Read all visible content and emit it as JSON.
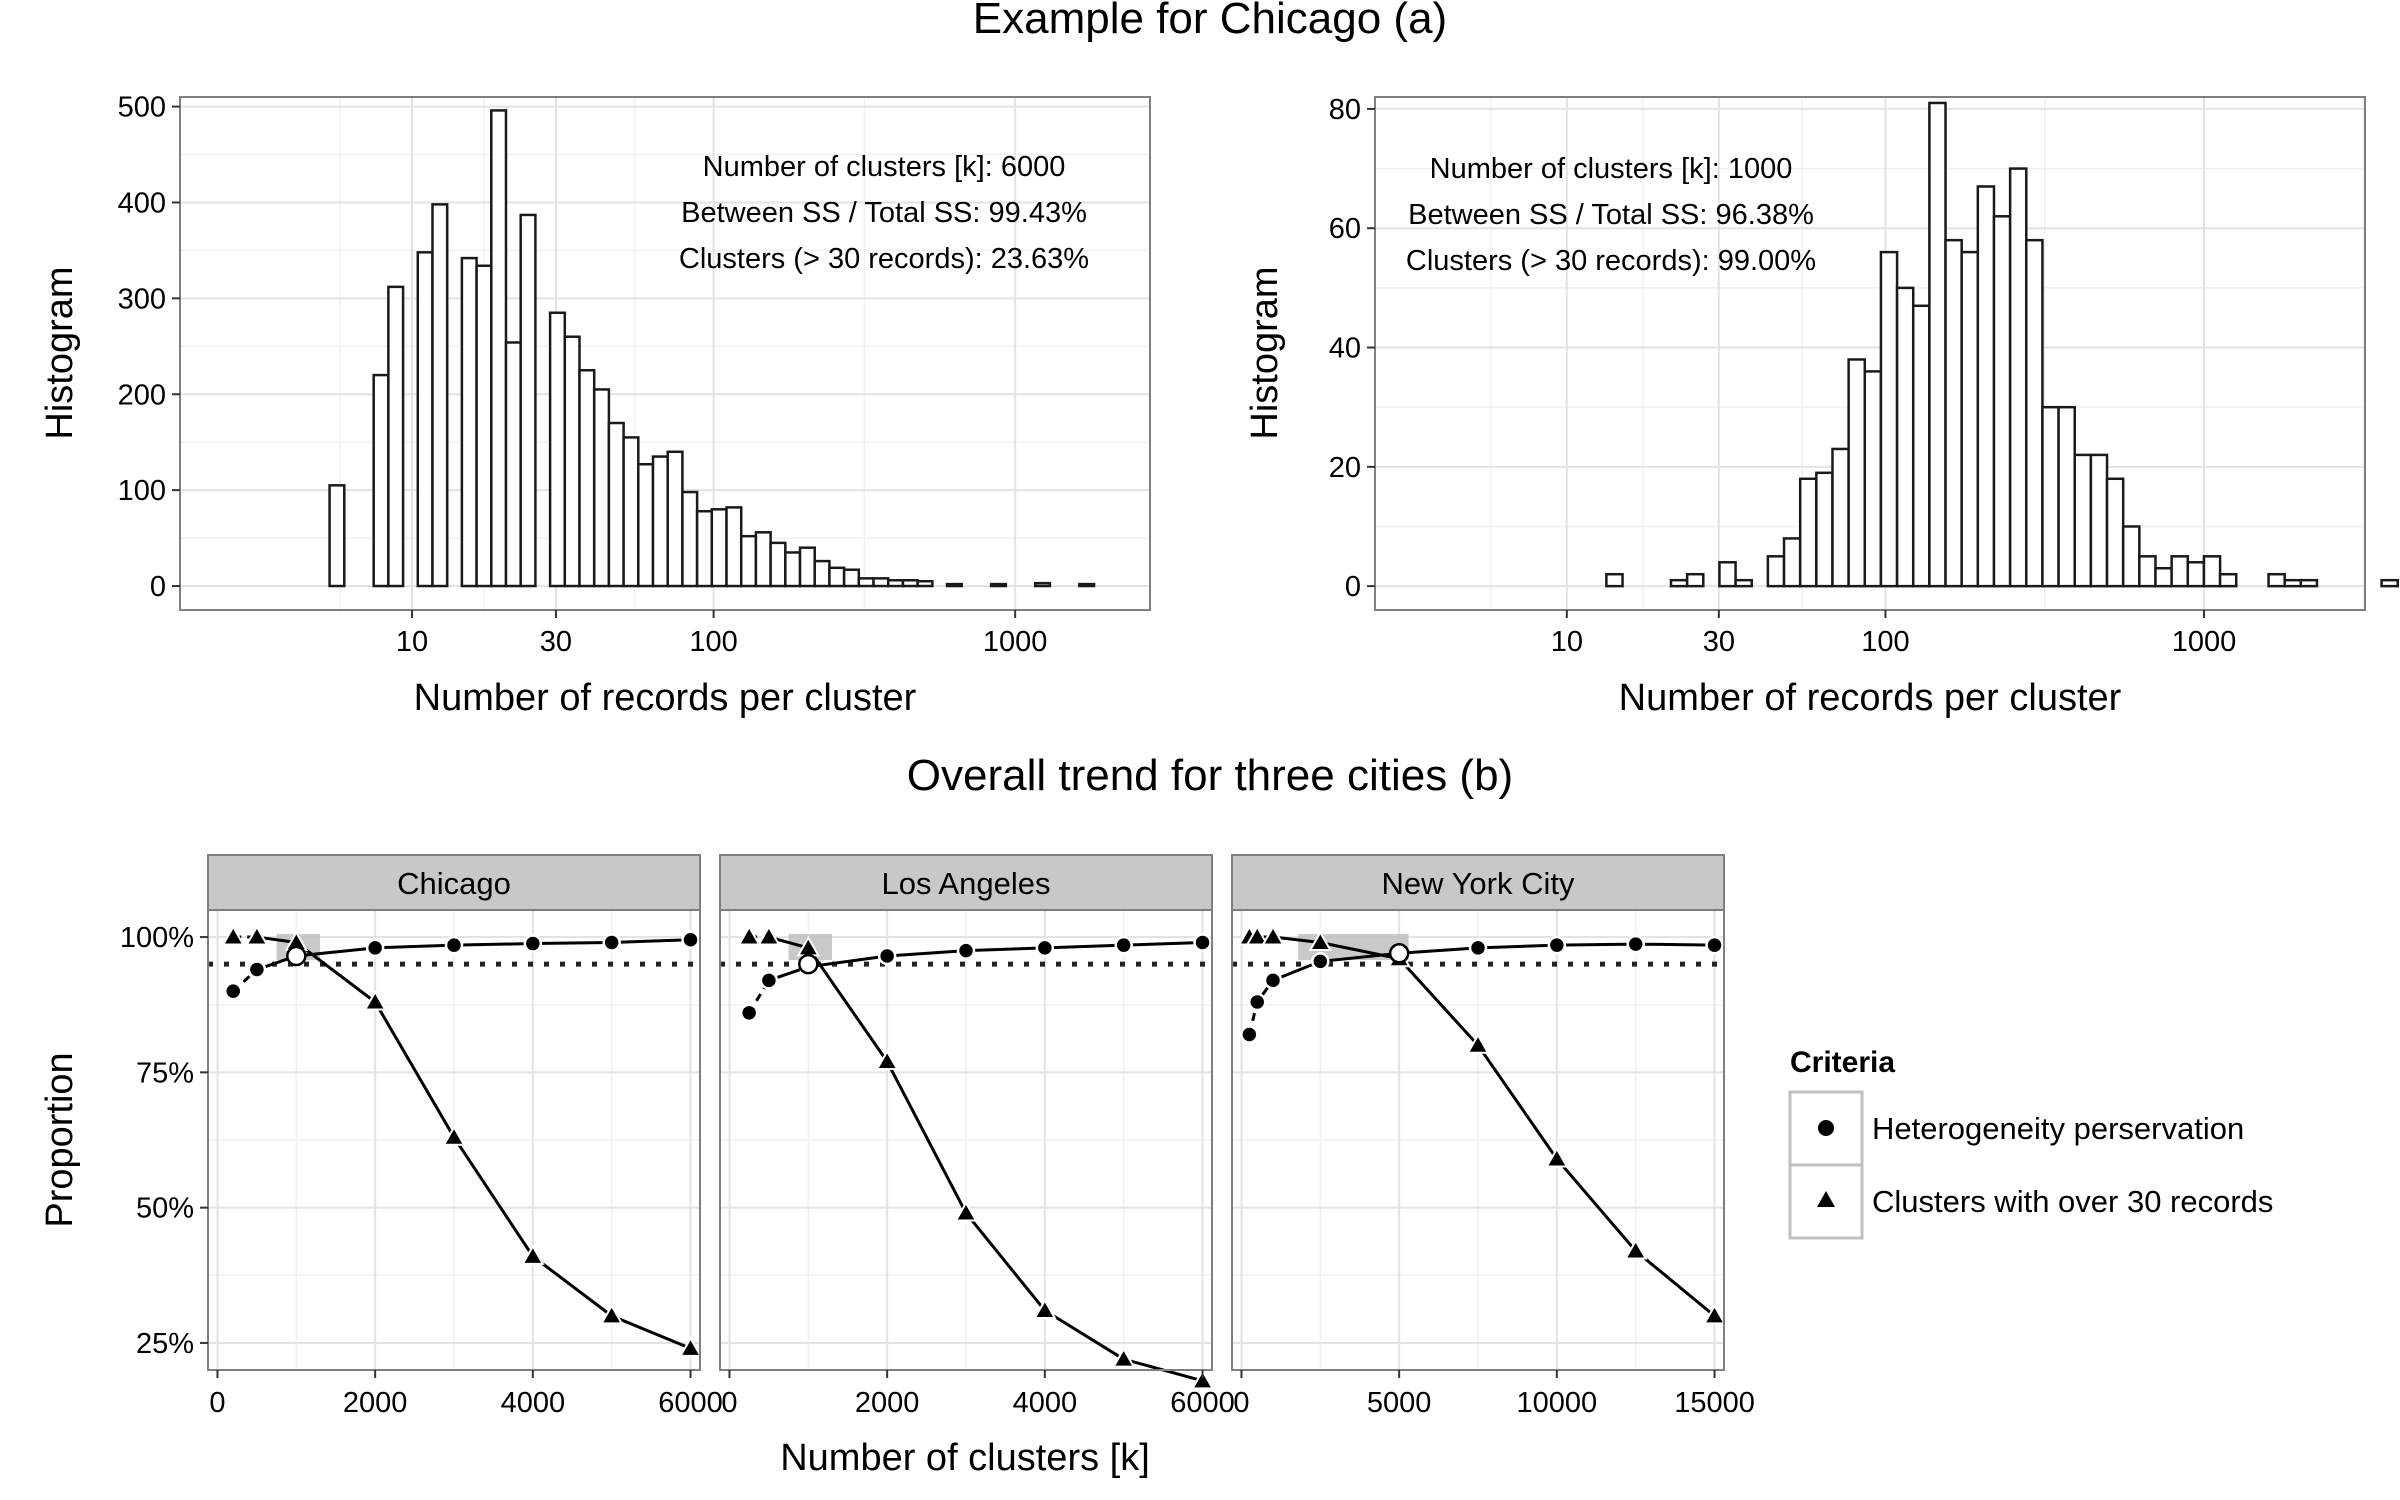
{
  "figure": {
    "title_a": "Example for Chicago (a)",
    "title_b": "Overall trend for three cities (b)"
  },
  "chart_data": [
    {
      "type": "bar",
      "id": "hist-chicago",
      "x_scale": "log",
      "xlabel": "Number of records per cluster",
      "ylabel": "Histogram",
      "xticks": [
        10,
        30,
        100,
        1000
      ],
      "xlim": [
        1.7,
        2800
      ],
      "ylim": [
        -25,
        510
      ],
      "yticks": [
        0,
        100,
        200,
        300,
        400,
        500
      ],
      "annotations": [
        "Number of clusters [k]: 6000",
        "Between SS / Total SS: 99.43%",
        "Clusters (> 30 records): 23.63%"
      ],
      "bin_start": 2.17,
      "bin_ratio": 1.1188,
      "values": [
        0,
        0,
        0,
        0,
        0,
        0,
        0,
        0,
        105,
        0,
        0,
        220,
        312,
        0,
        348,
        398,
        0,
        342,
        334,
        496,
        254,
        387,
        0,
        285,
        260,
        225,
        205,
        170,
        155,
        127,
        135,
        140,
        98,
        78,
        80,
        82,
        52,
        56,
        45,
        35,
        40,
        26,
        19,
        17,
        8,
        8,
        6,
        6,
        5,
        0,
        2,
        0,
        0,
        2,
        0,
        0,
        3,
        0,
        0,
        2,
        0,
        0,
        0,
        0
      ]
    },
    {
      "type": "bar",
      "id": "hist-chicago-1000",
      "x_scale": "log",
      "xlabel": "Number of records per cluster",
      "ylabel": "Histogram",
      "xticks": [
        10,
        30,
        100,
        1000
      ],
      "xlim": [
        2.5,
        3200
      ],
      "ylim": [
        -4,
        82
      ],
      "yticks": [
        0,
        20,
        40,
        60,
        80
      ],
      "annotations": [
        "Number of clusters [k]: 1000",
        "Between SS / Total SS: 96.38%",
        "Clusters (> 30 records): 99.00%"
      ],
      "bin_start": 3.28,
      "bin_ratio": 1.1238,
      "values": [
        0,
        0,
        0,
        0,
        0,
        0,
        0,
        0,
        0,
        0,
        0,
        0,
        2,
        0,
        0,
        0,
        1,
        2,
        0,
        4,
        1,
        0,
        5,
        8,
        18,
        19,
        23,
        38,
        36,
        56,
        50,
        47,
        81,
        58,
        56,
        67,
        62,
        70,
        58,
        30,
        30,
        22,
        22,
        18,
        10,
        5,
        3,
        5,
        4,
        5,
        2,
        0,
        0,
        2,
        1,
        1,
        0,
        0,
        0,
        0,
        1,
        0,
        0
      ]
    },
    {
      "type": "line",
      "id": "trend-chicago",
      "facet": "Chicago",
      "xlim": [
        0,
        6000
      ],
      "xticks": [
        0,
        2000,
        4000,
        6000
      ],
      "ylim": [
        0.2,
        1.05
      ],
      "series": [
        {
          "name": "Heterogeneity perservation",
          "marker": "circle",
          "x": [
            200,
            500,
            1000,
            2000,
            3000,
            4000,
            5000,
            6000
          ],
          "y": [
            0.9,
            0.94,
            0.965,
            0.98,
            0.985,
            0.988,
            0.99,
            0.995
          ]
        },
        {
          "name": "Clusters with over 30 records",
          "marker": "triangle",
          "x": [
            200,
            500,
            1000,
            2000,
            3000,
            4000,
            5000,
            6000
          ],
          "y": [
            1.0,
            1.0,
            0.99,
            0.88,
            0.63,
            0.41,
            0.3,
            0.24
          ]
        }
      ],
      "hline": 0.95,
      "highlight_range": [
        750,
        1300
      ],
      "open_marker": [
        1000,
        0.965
      ]
    },
    {
      "type": "line",
      "id": "trend-los-angeles",
      "facet": "Los Angeles",
      "xlim": [
        0,
        6000
      ],
      "xticks": [
        0,
        2000,
        4000,
        6000
      ],
      "ylim": [
        0.2,
        1.05
      ],
      "series": [
        {
          "name": "Heterogeneity perservation",
          "marker": "circle",
          "x": [
            250,
            500,
            1000,
            2000,
            3000,
            4000,
            5000,
            6000
          ],
          "y": [
            0.86,
            0.92,
            0.945,
            0.965,
            0.975,
            0.98,
            0.985,
            0.99
          ]
        },
        {
          "name": "Clusters with over 30 records",
          "marker": "triangle",
          "x": [
            250,
            500,
            1000,
            2000,
            3000,
            4000,
            5000,
            6000
          ],
          "y": [
            1.0,
            1.0,
            0.98,
            0.77,
            0.49,
            0.31,
            0.22,
            0.18
          ]
        }
      ],
      "hline": 0.95,
      "highlight_range": [
        750,
        1300
      ],
      "open_marker": [
        1000,
        0.95
      ]
    },
    {
      "type": "line",
      "id": "trend-new-york-city",
      "facet": "New York City",
      "xlim": [
        0,
        15000
      ],
      "xticks": [
        0,
        5000,
        10000,
        15000
      ],
      "ylim": [
        0.2,
        1.05
      ],
      "series": [
        {
          "name": "Heterogeneity perservation",
          "marker": "circle",
          "x": [
            250,
            500,
            1000,
            2500,
            5000,
            7500,
            10000,
            12500,
            15000
          ],
          "y": [
            0.82,
            0.88,
            0.92,
            0.955,
            0.97,
            0.98,
            0.985,
            0.987,
            0.985
          ]
        },
        {
          "name": "Clusters with over 30 records",
          "marker": "triangle",
          "x": [
            250,
            500,
            1000,
            2500,
            5000,
            7500,
            10000,
            12500,
            15000
          ],
          "y": [
            1.0,
            1.0,
            1.0,
            0.99,
            0.96,
            0.8,
            0.59,
            0.42,
            0.3
          ]
        }
      ],
      "hline": 0.95,
      "highlight_range": [
        1800,
        5300
      ],
      "open_marker": [
        5000,
        0.97
      ]
    }
  ],
  "trend_axes": {
    "xlabel": "Number of clusters [k]",
    "ylabel": "Proportion",
    "yticks": [
      0.25,
      0.5,
      0.75,
      1.0
    ],
    "ytick_labels": [
      "25%",
      "50%",
      "75%",
      "100%"
    ],
    "facet_labels": [
      "Chicago",
      "Los Angeles",
      "New York City"
    ],
    "xtick_labels": [
      [
        "0",
        "2000",
        "4000",
        "6000"
      ],
      [
        "0",
        "2000",
        "4000",
        "6000"
      ],
      [
        "0",
        "5000",
        "10000",
        "15000"
      ]
    ]
  },
  "legend": {
    "title": "Criteria",
    "items": [
      {
        "label": "Heterogeneity perservation",
        "marker": "circle"
      },
      {
        "label": "Clusters with over 30 records",
        "marker": "triangle"
      }
    ]
  },
  "colors": {
    "panel_border": "#7f7f7f",
    "grid_major": "#e3e3e3",
    "grid_minor": "#f1f1f1",
    "strip_fill": "#c8c8c8",
    "highlight": "#c0c0c0",
    "ink": "#000000"
  }
}
